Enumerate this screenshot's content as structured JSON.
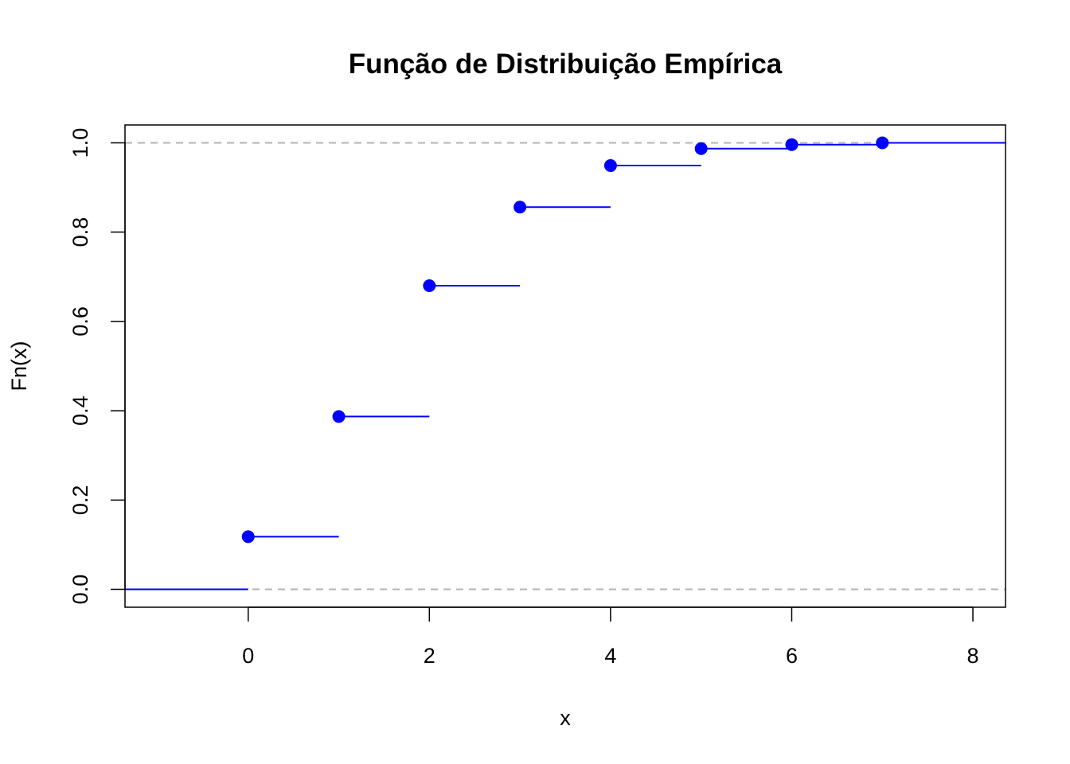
{
  "chart_data": {
    "type": "step",
    "title": "Função de Distribuição Empírica",
    "xlabel": "x",
    "ylabel": "Fn(x)",
    "xlim": [
      -1.36,
      8.36
    ],
    "ylim": [
      -0.04,
      1.04
    ],
    "x_ticks": [
      0,
      2,
      4,
      6,
      8
    ],
    "y_ticks": [
      0.0,
      0.2,
      0.4,
      0.6,
      0.8,
      1.0
    ],
    "x_tick_labels": [
      "0",
      "2",
      "4",
      "6",
      "8"
    ],
    "y_tick_labels": [
      "0.0",
      "0.2",
      "0.4",
      "0.6",
      "0.8",
      "1.0"
    ],
    "points": [
      {
        "x": 0,
        "y": 0.118
      },
      {
        "x": 1,
        "y": 0.387
      },
      {
        "x": 2,
        "y": 0.68
      },
      {
        "x": 3,
        "y": 0.856
      },
      {
        "x": 4,
        "y": 0.949
      },
      {
        "x": 5,
        "y": 0.987
      },
      {
        "x": 6,
        "y": 0.996
      },
      {
        "x": 7,
        "y": 1.0
      }
    ],
    "reference_lines": [
      0,
      1
    ],
    "grid": false,
    "colors": {
      "series": "#0000ff",
      "reference": "#b3b3b3",
      "axis": "#000000"
    }
  }
}
